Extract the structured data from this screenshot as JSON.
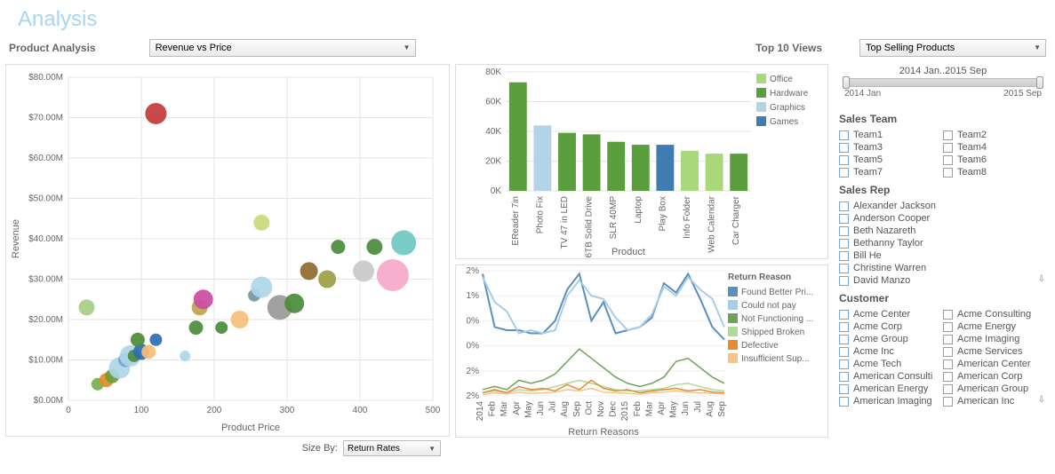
{
  "title": "Analysis",
  "productAnalysis": {
    "label": "Product Analysis",
    "select": "Revenue vs Price"
  },
  "topViews": {
    "label": "Top 10 Views",
    "select": "Top Selling Products"
  },
  "timeSlider": {
    "caption": "2014 Jan..2015 Sep",
    "start": "2014 Jan",
    "end": "2015 Sep"
  },
  "scatter": {
    "type": "bubble",
    "xlabel": "Product Price",
    "ylabel": "Revenue",
    "xlim": [
      0,
      500
    ],
    "ylim": [
      0,
      80
    ],
    "xtick_step": 100,
    "ytick_step": 10,
    "ytick_prefix": "$",
    "ytick_suffix": ".00M",
    "grid_color": "#e5e5e5",
    "background": "#ffffff",
    "points": [
      {
        "x": 40,
        "y": 4,
        "r": 7,
        "c": "#73b04a"
      },
      {
        "x": 52,
        "y": 5,
        "r": 8,
        "c": "#e58a2e"
      },
      {
        "x": 60,
        "y": 6,
        "r": 8,
        "c": "#6a9e3a"
      },
      {
        "x": 70,
        "y": 8,
        "r": 12,
        "c": "#add6e8"
      },
      {
        "x": 25,
        "y": 23,
        "r": 9,
        "c": "#a7ce89"
      },
      {
        "x": 78,
        "y": 10,
        "r": 8,
        "c": "#7aa3d1"
      },
      {
        "x": 85,
        "y": 11,
        "r": 12,
        "c": "#add6e8"
      },
      {
        "x": 90,
        "y": 11,
        "r": 7,
        "c": "#4a8c3c"
      },
      {
        "x": 100,
        "y": 12,
        "r": 9,
        "c": "#2f6db4"
      },
      {
        "x": 95,
        "y": 15,
        "r": 8,
        "c": "#4a8c3c"
      },
      {
        "x": 110,
        "y": 12,
        "r": 8,
        "c": "#f8be7a"
      },
      {
        "x": 120,
        "y": 15,
        "r": 7,
        "c": "#2f6db4"
      },
      {
        "x": 120,
        "y": 71,
        "r": 12,
        "c": "#c33a3a"
      },
      {
        "x": 160,
        "y": 11,
        "r": 6,
        "c": "#add6e8"
      },
      {
        "x": 175,
        "y": 18,
        "r": 8,
        "c": "#4a8c3c"
      },
      {
        "x": 180,
        "y": 23,
        "r": 9,
        "c": "#bfa34b"
      },
      {
        "x": 185,
        "y": 25,
        "r": 11,
        "c": "#c94ca2"
      },
      {
        "x": 210,
        "y": 18,
        "r": 7,
        "c": "#4a8c3c"
      },
      {
        "x": 235,
        "y": 20,
        "r": 10,
        "c": "#f8be7a"
      },
      {
        "x": 255,
        "y": 26,
        "r": 7,
        "c": "#7296a1"
      },
      {
        "x": 265,
        "y": 28,
        "r": 12,
        "c": "#add6e8"
      },
      {
        "x": 265,
        "y": 44,
        "r": 9,
        "c": "#cbd97a"
      },
      {
        "x": 290,
        "y": 23,
        "r": 14,
        "c": "#999999"
      },
      {
        "x": 310,
        "y": 24,
        "r": 11,
        "c": "#4a8c3c"
      },
      {
        "x": 330,
        "y": 32,
        "r": 10,
        "c": "#8f6b2f"
      },
      {
        "x": 355,
        "y": 30,
        "r": 10,
        "c": "#9d9d44"
      },
      {
        "x": 370,
        "y": 38,
        "r": 8,
        "c": "#4a8c3c"
      },
      {
        "x": 405,
        "y": 32,
        "r": 12,
        "c": "#c9c9c9"
      },
      {
        "x": 420,
        "y": 38,
        "r": 9,
        "c": "#4a8c3c"
      },
      {
        "x": 445,
        "y": 31,
        "r": 18,
        "c": "#f5a8c9"
      },
      {
        "x": 460,
        "y": 39,
        "r": 14,
        "c": "#6fc9c2"
      }
    ]
  },
  "sizeBy": {
    "label": "Size By:",
    "select": "Return Rates"
  },
  "barChart": {
    "type": "bar",
    "ylabel": "",
    "xlabel": "Product",
    "ylim": [
      0,
      80000
    ],
    "ytick_step": 20000,
    "ytick_suffix": "K",
    "ytick_divisor": 1000,
    "grid_color": "#e5e5e5",
    "legend": [
      {
        "label": "Office",
        "color": "#a8d87a"
      },
      {
        "label": "Hardware",
        "color": "#5a9e3e"
      },
      {
        "label": "Graphics",
        "color": "#b5d3e6"
      },
      {
        "label": "Games",
        "color": "#3e7cb1"
      }
    ],
    "bars": [
      {
        "label": "EReader 7in",
        "value": 73000,
        "color": "#5a9e3e"
      },
      {
        "label": "Photo Fix",
        "value": 44000,
        "color": "#b5d3e6"
      },
      {
        "label": "TV 47 in LED",
        "value": 39000,
        "color": "#5a9e3e"
      },
      {
        "label": "6TB Solid Drive",
        "value": 38000,
        "color": "#5a9e3e"
      },
      {
        "label": "SLR 40MP",
        "value": 33000,
        "color": "#5a9e3e"
      },
      {
        "label": "Laptop",
        "value": 31000,
        "color": "#5a9e3e"
      },
      {
        "label": "Play Box",
        "value": 31000,
        "color": "#3e7cb1"
      },
      {
        "label": "Info Folder",
        "value": 27000,
        "color": "#a8d87a"
      },
      {
        "label": "Web Calendar",
        "value": 25000,
        "color": "#a8d87a"
      },
      {
        "label": "Car Charger",
        "value": 25000,
        "color": "#5a9e3e"
      }
    ]
  },
  "lineChart": {
    "type": "line",
    "title": "Return Reasons",
    "ylim": [
      0,
      2
    ],
    "ytick_step": 1,
    "ytick_suffix": "%",
    "extra_yticks": [
      "2%",
      "1%",
      "0%",
      "0%",
      "2%",
      "2%"
    ],
    "x_labels": [
      "2014",
      "Feb",
      "Mar",
      "Apr",
      "May",
      "Jun",
      "Jul",
      "Aug",
      "Sep",
      "Oct",
      "Nov",
      "Dec",
      "2015",
      "Feb",
      "Mar",
      "Apr",
      "May",
      "Jun",
      "Jul",
      "Aug",
      "Sep"
    ],
    "legend_title": "Return Reason",
    "legend": [
      {
        "label": "Found Better Pri...",
        "color": "#5a8fbf"
      },
      {
        "label": "Could not pay",
        "color": "#a8cde6"
      },
      {
        "label": "Not Functioning ...",
        "color": "#6fa35a"
      },
      {
        "label": "Shipped Broken",
        "color": "#b1d99a"
      },
      {
        "label": "Defective",
        "color": "#e58a2e"
      },
      {
        "label": "Insufficient Sup...",
        "color": "#f0c68a"
      }
    ],
    "series": [
      {
        "color": "#5a8fbf",
        "width": 2,
        "y": [
          1.95,
          1.1,
          1.05,
          1.05,
          1.0,
          1.0,
          1.2,
          1.7,
          1.95,
          1.2,
          1.5,
          1.0,
          1.05,
          1.1,
          1.25,
          1.8,
          1.65,
          1.95,
          1.55,
          1.1,
          0.9
        ]
      },
      {
        "color": "#a8cde6",
        "width": 2,
        "y": [
          1.9,
          1.5,
          1.35,
          1.0,
          1.05,
          1.0,
          1.05,
          1.6,
          1.85,
          1.6,
          1.55,
          1.25,
          1.05,
          1.1,
          1.3,
          1.75,
          1.6,
          1.9,
          1.7,
          1.55,
          1.1
        ]
      },
      {
        "color": "#6fa35a",
        "width": 1.5,
        "y": [
          0.1,
          0.15,
          0.1,
          0.25,
          0.2,
          0.25,
          0.35,
          0.55,
          0.75,
          0.6,
          0.45,
          0.3,
          0.2,
          0.15,
          0.2,
          0.3,
          0.55,
          0.6,
          0.45,
          0.3,
          0.2
        ]
      },
      {
        "color": "#b1d99a",
        "width": 1.5,
        "y": [
          0.05,
          0.08,
          0.05,
          0.1,
          0.08,
          0.1,
          0.15,
          0.2,
          0.25,
          0.2,
          0.15,
          0.1,
          0.08,
          0.08,
          0.1,
          0.12,
          0.18,
          0.2,
          0.15,
          0.1,
          0.08
        ]
      },
      {
        "color": "#e58a2e",
        "width": 1.5,
        "y": [
          0.05,
          0.1,
          0.05,
          0.15,
          0.1,
          0.12,
          0.08,
          0.18,
          0.1,
          0.25,
          0.12,
          0.08,
          0.1,
          0.05,
          0.08,
          0.1,
          0.12,
          0.08,
          0.1,
          0.06,
          0.05
        ]
      },
      {
        "color": "#f0c68a",
        "width": 1.5,
        "y": [
          0.02,
          0.05,
          0.03,
          0.06,
          0.04,
          0.05,
          0.06,
          0.1,
          0.08,
          0.12,
          0.06,
          0.05,
          0.04,
          0.03,
          0.05,
          0.06,
          0.08,
          0.06,
          0.05,
          0.04,
          0.03
        ]
      }
    ]
  },
  "filters": {
    "salesTeam": {
      "title": "Sales Team",
      "items": [
        "Team1",
        "Team2",
        "Team3",
        "Team4",
        "Team5",
        "Team6",
        "Team7",
        "Team8"
      ]
    },
    "salesRep": {
      "title": "Sales Rep",
      "items": [
        "Alexander Jackson",
        "Anderson Cooper",
        "Beth Nazareth",
        "Bethanny Taylor",
        "Bill He",
        "Christine Warren",
        "David Manzo"
      ]
    },
    "customer": {
      "title": "Customer",
      "items": [
        "Acme Center",
        "Acme Consulting",
        "Acme Corp",
        "Acme Energy",
        "Acme Group",
        "Acme Imaging",
        "Acme Inc",
        "Acme Services",
        "Acme Tech",
        "American Center",
        "American Consulti",
        "American Corp",
        "American Energy",
        "American Group",
        "American Imaging",
        "American Inc"
      ]
    }
  }
}
